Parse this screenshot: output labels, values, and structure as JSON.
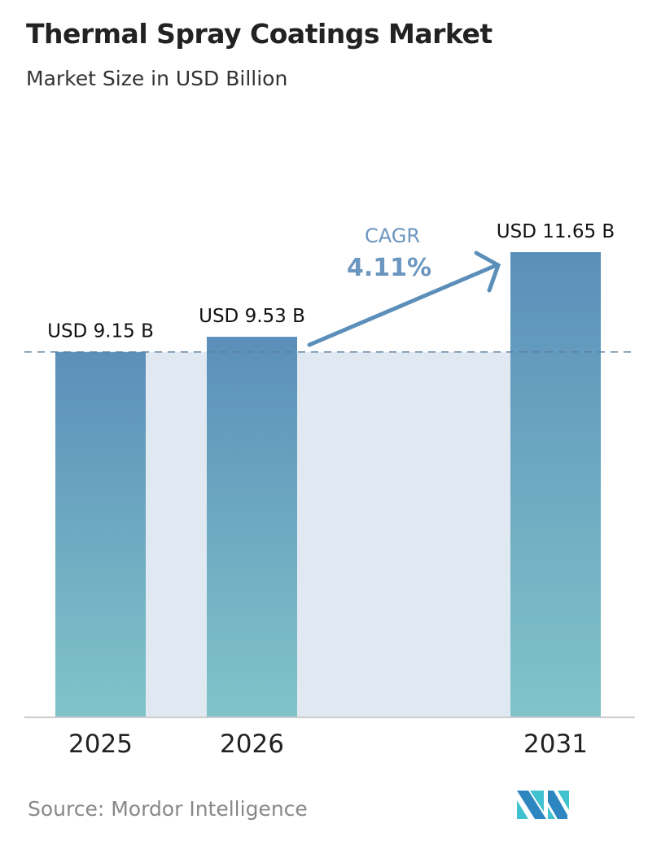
{
  "chart_data": {
    "type": "bar",
    "title": "Thermal Spray Coatings Market",
    "subtitle": "Market Size in USD Billion",
    "categories": [
      "2025",
      "2026",
      "2031"
    ],
    "values": [
      9.15,
      9.53,
      11.65
    ],
    "data_labels": [
      "USD 9.15 B",
      "USD 9.53 B",
      "USD 11.65 B"
    ],
    "annotation": {
      "label": "CAGR",
      "value": "4.11%"
    },
    "reference_line": 9.15,
    "ylim": [
      0,
      11.65
    ],
    "grid": false,
    "colors": {
      "bar_top": "#5b8fba",
      "bar_bottom": "#80c4c9",
      "band": "#e0e9f1",
      "annotation": "#5b8fba"
    }
  },
  "source": "Source:  Mordor Intelligence",
  "logo_text": "Mordor Intelligence"
}
